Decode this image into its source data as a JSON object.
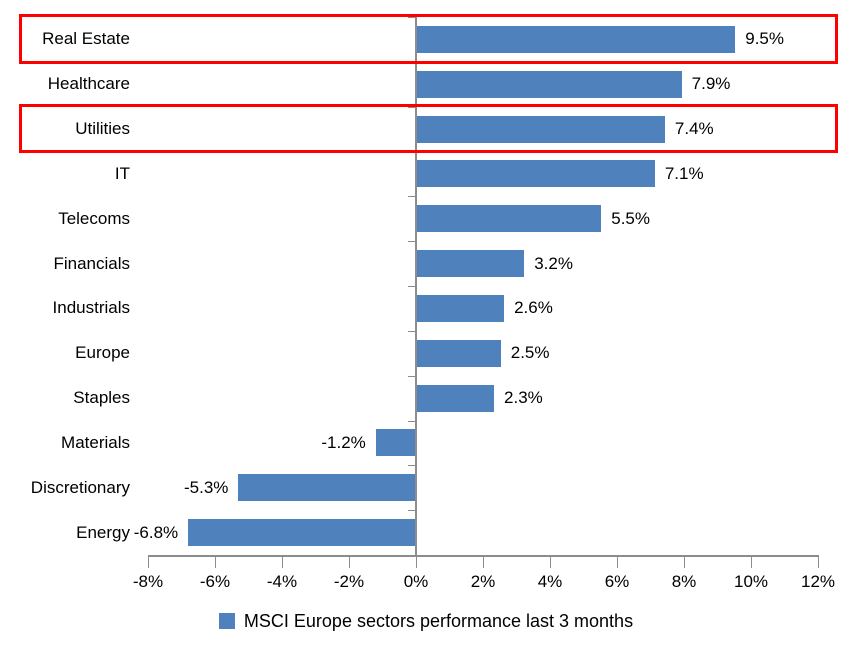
{
  "chart_data": {
    "type": "bar",
    "orientation": "horizontal",
    "title": "",
    "categories": [
      "Real Estate",
      "Healthcare",
      "Utilities",
      "IT",
      "Telecoms",
      "Financials",
      "Industrials",
      "Europe",
      "Staples",
      "Materials",
      "Discretionary",
      "Energy"
    ],
    "values": [
      9.5,
      7.9,
      7.4,
      7.1,
      5.5,
      3.2,
      2.6,
      2.5,
      2.3,
      -1.2,
      -5.3,
      -6.8
    ],
    "value_labels": [
      "9.5%",
      "7.9%",
      "7.4%",
      "7.1%",
      "5.5%",
      "3.2%",
      "2.6%",
      "2.5%",
      "2.3%",
      "-1.2%",
      "-5.3%",
      "-6.8%"
    ],
    "x_tick_values": [
      -8,
      -6,
      -4,
      -2,
      0,
      2,
      4,
      6,
      8,
      10,
      12
    ],
    "x_ticks": [
      "-8%",
      "-6%",
      "-4%",
      "-2%",
      "0%",
      "2%",
      "4%",
      "6%",
      "8%",
      "10%",
      "12%"
    ],
    "xlim": [
      -8,
      12
    ],
    "grid": false,
    "bar_color": "#4F81BD",
    "axis_color": "#8C8C8C",
    "text_color": "#000000",
    "highlight_color": "#FF0000",
    "highlighted_categories": [
      "Real Estate",
      "Utilities"
    ],
    "legend": {
      "label": "MSCI Europe sectors performance last 3 months",
      "swatch_color": "#4F81BD",
      "position": "bottom-center"
    }
  }
}
